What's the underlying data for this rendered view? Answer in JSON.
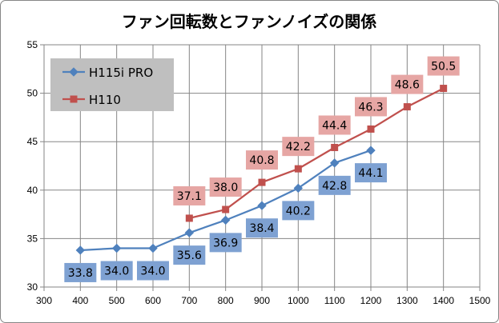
{
  "chart_data": {
    "type": "line",
    "title": "ファン回転数とファンノイズの関係",
    "xlabel": "",
    "ylabel": "",
    "xlim": [
      300,
      1500
    ],
    "ylim": [
      30,
      55
    ],
    "xticks": [
      "300",
      "400",
      "500",
      "600",
      "700",
      "800",
      "900",
      "1000",
      "1100",
      "1200",
      "1300",
      "1400",
      "1500"
    ],
    "yticks": [
      "30",
      "35",
      "40",
      "45",
      "50",
      "55"
    ],
    "grid": true,
    "legend": "top-left",
    "series": [
      {
        "name": "H115i PRO",
        "color": "#4F81BD",
        "marker": "diamond",
        "label_bg": "#7EA1D2",
        "label_position": "below",
        "x": [
          400,
          500,
          600,
          700,
          800,
          900,
          1000,
          1100,
          1200
        ],
        "values": [
          33.8,
          34.0,
          34.0,
          35.6,
          36.9,
          38.4,
          40.2,
          42.8,
          44.1
        ],
        "labels": [
          "33.8",
          "34.0",
          "34.0",
          "35.6",
          "36.9",
          "38.4",
          "40.2",
          "42.8",
          "44.1"
        ]
      },
      {
        "name": "H110",
        "color": "#C0504D",
        "marker": "square",
        "label_bg": "#E6A6A4",
        "label_position": "above",
        "x": [
          700,
          800,
          900,
          1000,
          1100,
          1200,
          1300,
          1400
        ],
        "values": [
          37.1,
          38.0,
          40.8,
          42.2,
          44.4,
          46.3,
          48.6,
          50.5
        ],
        "labels": [
          "37.1",
          "38.0",
          "40.8",
          "42.2",
          "44.4",
          "46.3",
          "48.6",
          "50.5"
        ]
      }
    ]
  }
}
